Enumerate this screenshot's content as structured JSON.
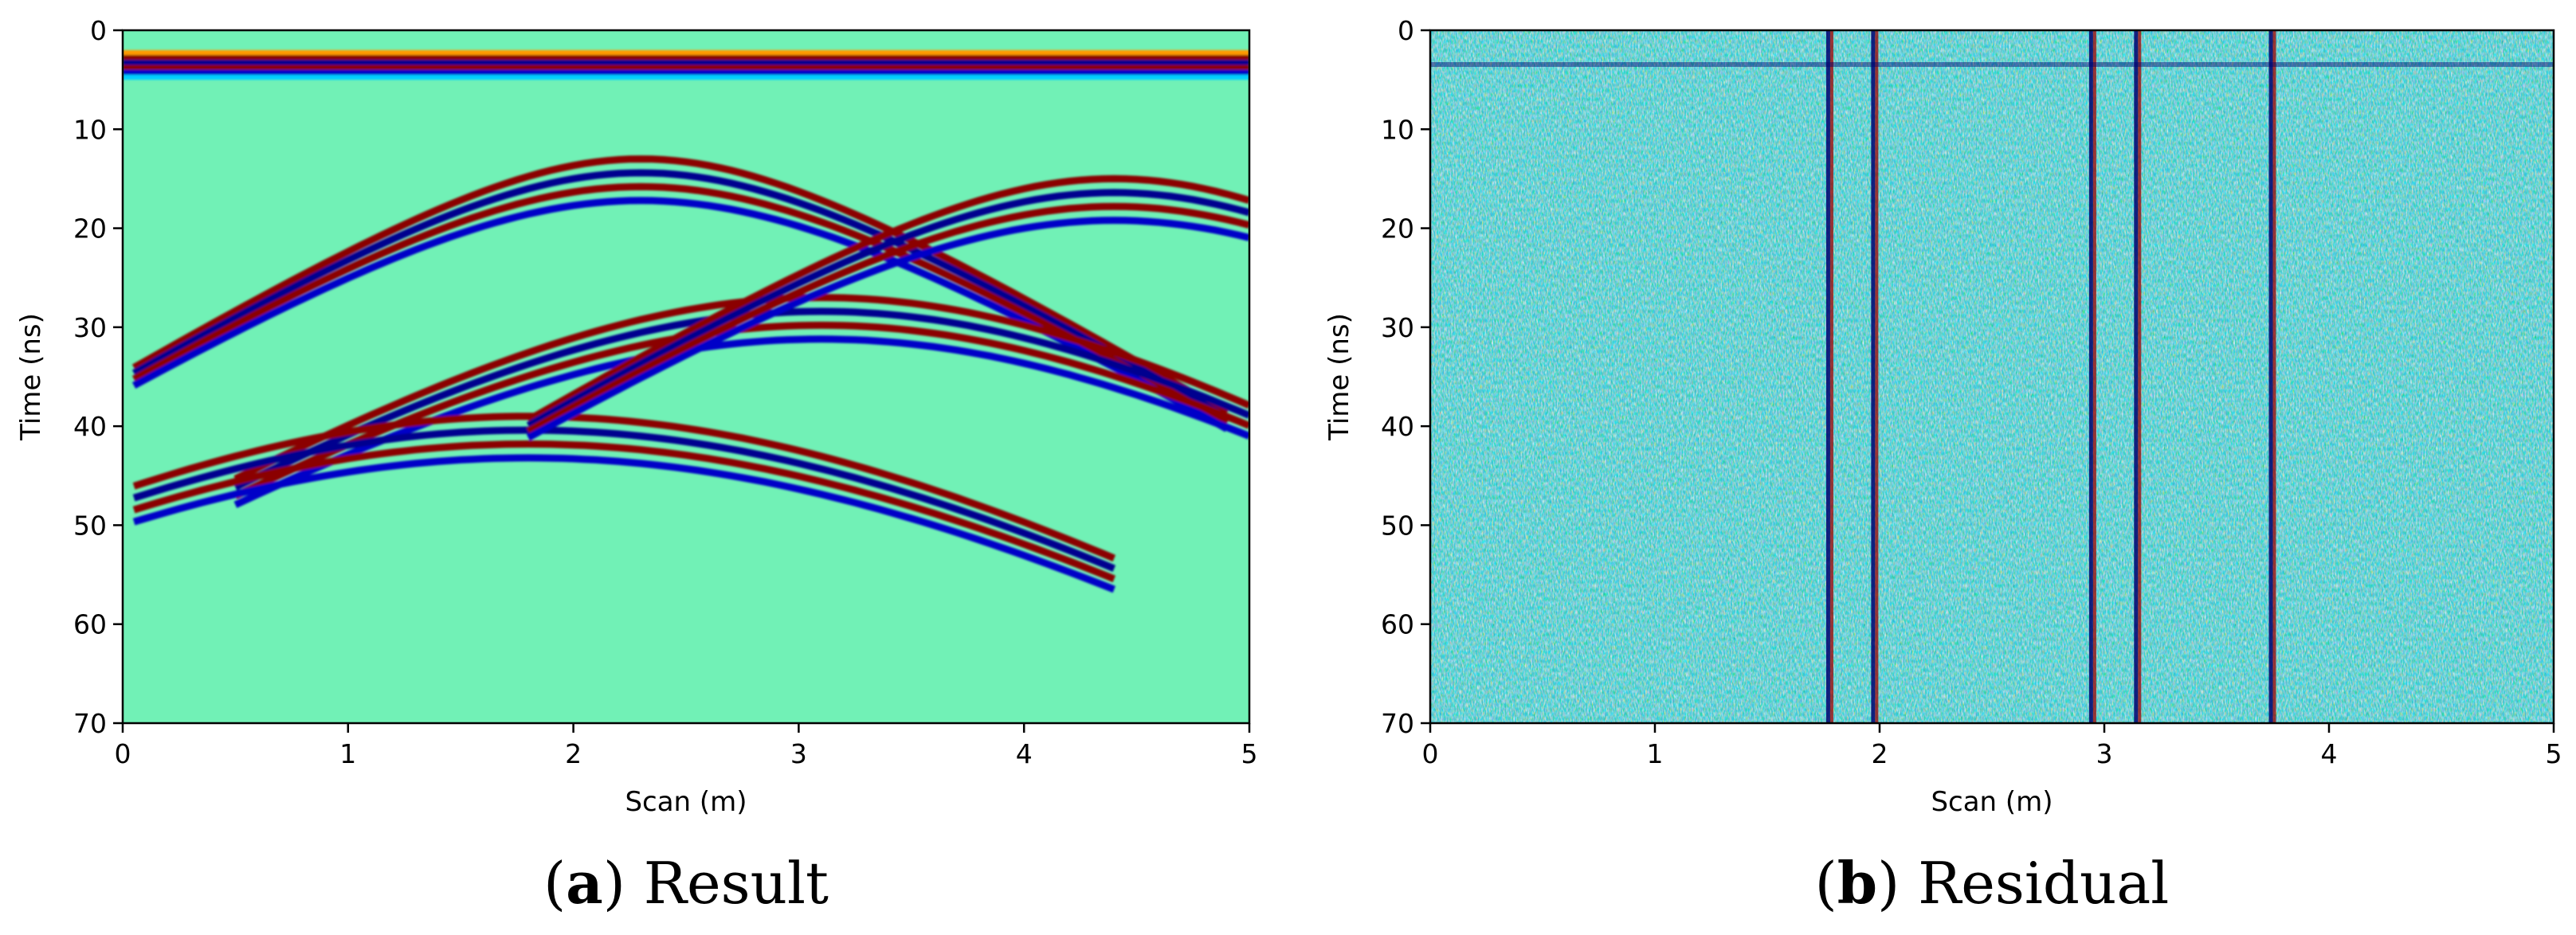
{
  "chart_data": [
    {
      "type": "heatmap",
      "caption": {
        "open": "(",
        "letter": "a",
        "close": ")",
        "text": " Result"
      },
      "xlabel": "Scan (m)",
      "ylabel": "Time (ns)",
      "xlim": [
        0,
        5
      ],
      "ylim": [
        70,
        0
      ],
      "xticks": [
        "0",
        "1",
        "2",
        "3",
        "4",
        "5"
      ],
      "yticks": [
        "0",
        "10",
        "20",
        "30",
        "40",
        "50",
        "60",
        "70"
      ],
      "colormap": "jet",
      "direct_wave_time_ns": [
        2.5,
        4.5
      ],
      "hyperbolas": [
        {
          "apex_x": 2.3,
          "apex_t": 13
        },
        {
          "apex_x": 3.1,
          "apex_t": 27
        },
        {
          "apex_x": 1.8,
          "apex_t": 39
        },
        {
          "apex_x": 4.4,
          "apex_t": 15
        }
      ]
    },
    {
      "type": "heatmap",
      "caption": {
        "open": "(",
        "letter": "b",
        "close": ")",
        "text": " Residual"
      },
      "xlabel": "Scan (m)",
      "ylabel": "Time (ns)",
      "xlim": [
        0,
        5
      ],
      "ylim": [
        70,
        0
      ],
      "xticks": [
        "0",
        "1",
        "2",
        "3",
        "4",
        "5"
      ],
      "yticks": [
        "0",
        "10",
        "20",
        "30",
        "40",
        "50",
        "60",
        "70"
      ],
      "colormap": "jet",
      "vertical_stripes_m": [
        1.78,
        1.98,
        2.95,
        3.15,
        3.75
      ]
    }
  ]
}
